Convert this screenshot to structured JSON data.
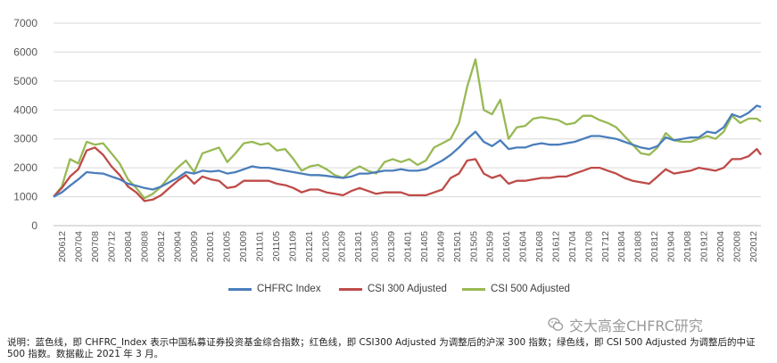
{
  "chart_data": {
    "type": "line",
    "title": "",
    "xlabel": "",
    "ylabel": "",
    "ylim": [
      0,
      7000
    ],
    "yticks": [
      0,
      1000,
      2000,
      3000,
      4000,
      5000,
      6000,
      7000
    ],
    "grid": "horizontal",
    "legend_position": "bottom",
    "xtick_labels": [
      "200612",
      "200704",
      "200708",
      "200712",
      "200804",
      "200808",
      "200812",
      "200904",
      "200909",
      "201001",
      "201005",
      "201009",
      "201101",
      "201105",
      "201109",
      "201201",
      "201205",
      "201209",
      "201301",
      "201305",
      "201309",
      "201401",
      "201405",
      "201409",
      "201501",
      "201505",
      "201509",
      "201601",
      "201604",
      "201608",
      "201612",
      "201704",
      "201708",
      "201712",
      "201804",
      "201808",
      "201812",
      "201904",
      "201908",
      "201912",
      "202004",
      "202008",
      "202012"
    ],
    "x_start": "2006-12",
    "x_end": "2021-03",
    "series": [
      {
        "name": "CHFRC Index",
        "color": "#4a7ebb",
        "points": [
          [
            "2006-12",
            1000
          ],
          [
            "2007-02",
            1150
          ],
          [
            "2007-04",
            1380
          ],
          [
            "2007-06",
            1600
          ],
          [
            "2007-08",
            1850
          ],
          [
            "2007-10",
            1820
          ],
          [
            "2007-12",
            1800
          ],
          [
            "2008-02",
            1700
          ],
          [
            "2008-04",
            1600
          ],
          [
            "2008-06",
            1450
          ],
          [
            "2008-08",
            1380
          ],
          [
            "2008-10",
            1300
          ],
          [
            "2008-12",
            1250
          ],
          [
            "2009-02",
            1350
          ],
          [
            "2009-04",
            1500
          ],
          [
            "2009-06",
            1650
          ],
          [
            "2009-08",
            1850
          ],
          [
            "2009-10",
            1800
          ],
          [
            "2009-12",
            1900
          ],
          [
            "2010-02",
            1870
          ],
          [
            "2010-04",
            1900
          ],
          [
            "2010-06",
            1800
          ],
          [
            "2010-08",
            1850
          ],
          [
            "2010-10",
            1950
          ],
          [
            "2010-12",
            2050
          ],
          [
            "2011-02",
            2000
          ],
          [
            "2011-04",
            2000
          ],
          [
            "2011-06",
            1950
          ],
          [
            "2011-08",
            1900
          ],
          [
            "2011-10",
            1850
          ],
          [
            "2011-12",
            1800
          ],
          [
            "2012-02",
            1750
          ],
          [
            "2012-04",
            1750
          ],
          [
            "2012-06",
            1720
          ],
          [
            "2012-08",
            1680
          ],
          [
            "2012-10",
            1650
          ],
          [
            "2012-12",
            1700
          ],
          [
            "2013-02",
            1800
          ],
          [
            "2013-04",
            1800
          ],
          [
            "2013-06",
            1850
          ],
          [
            "2013-08",
            1900
          ],
          [
            "2013-10",
            1900
          ],
          [
            "2013-12",
            1950
          ],
          [
            "2014-02",
            1900
          ],
          [
            "2014-04",
            1900
          ],
          [
            "2014-06",
            1950
          ],
          [
            "2014-08",
            2100
          ],
          [
            "2014-10",
            2250
          ],
          [
            "2014-12",
            2450
          ],
          [
            "2015-02",
            2700
          ],
          [
            "2015-04",
            3000
          ],
          [
            "2015-06",
            3250
          ],
          [
            "2015-08",
            2900
          ],
          [
            "2015-10",
            2750
          ],
          [
            "2015-12",
            2950
          ],
          [
            "2016-02",
            2650
          ],
          [
            "2016-04",
            2700
          ],
          [
            "2016-06",
            2700
          ],
          [
            "2016-08",
            2800
          ],
          [
            "2016-10",
            2850
          ],
          [
            "2016-12",
            2800
          ],
          [
            "2017-02",
            2800
          ],
          [
            "2017-04",
            2850
          ],
          [
            "2017-06",
            2900
          ],
          [
            "2017-08",
            3000
          ],
          [
            "2017-10",
            3100
          ],
          [
            "2017-12",
            3100
          ],
          [
            "2018-02",
            3050
          ],
          [
            "2018-04",
            3000
          ],
          [
            "2018-06",
            2900
          ],
          [
            "2018-08",
            2800
          ],
          [
            "2018-10",
            2700
          ],
          [
            "2018-12",
            2650
          ],
          [
            "2019-02",
            2750
          ],
          [
            "2019-04",
            3050
          ],
          [
            "2019-06",
            2950
          ],
          [
            "2019-08",
            3000
          ],
          [
            "2019-10",
            3050
          ],
          [
            "2019-12",
            3050
          ],
          [
            "2020-02",
            3250
          ],
          [
            "2020-04",
            3200
          ],
          [
            "2020-06",
            3400
          ],
          [
            "2020-08",
            3850
          ],
          [
            "2020-10",
            3750
          ],
          [
            "2020-12",
            3900
          ],
          [
            "2021-02",
            4150
          ],
          [
            "2021-03",
            4100
          ]
        ]
      },
      {
        "name": "CSI 300 Adjusted",
        "color": "#be4b48",
        "points": [
          [
            "2006-12",
            1000
          ],
          [
            "2007-02",
            1300
          ],
          [
            "2007-04",
            1700
          ],
          [
            "2007-06",
            1950
          ],
          [
            "2007-08",
            2600
          ],
          [
            "2007-10",
            2700
          ],
          [
            "2007-12",
            2450
          ],
          [
            "2008-02",
            2050
          ],
          [
            "2008-04",
            1750
          ],
          [
            "2008-06",
            1350
          ],
          [
            "2008-08",
            1150
          ],
          [
            "2008-10",
            850
          ],
          [
            "2008-12",
            900
          ],
          [
            "2009-02",
            1050
          ],
          [
            "2009-04",
            1300
          ],
          [
            "2009-06",
            1550
          ],
          [
            "2009-08",
            1750
          ],
          [
            "2009-10",
            1450
          ],
          [
            "2009-12",
            1700
          ],
          [
            "2010-02",
            1600
          ],
          [
            "2010-04",
            1550
          ],
          [
            "2010-06",
            1300
          ],
          [
            "2010-08",
            1350
          ],
          [
            "2010-10",
            1550
          ],
          [
            "2010-12",
            1550
          ],
          [
            "2011-02",
            1550
          ],
          [
            "2011-04",
            1550
          ],
          [
            "2011-06",
            1450
          ],
          [
            "2011-08",
            1400
          ],
          [
            "2011-10",
            1300
          ],
          [
            "2011-12",
            1150
          ],
          [
            "2012-02",
            1250
          ],
          [
            "2012-04",
            1250
          ],
          [
            "2012-06",
            1150
          ],
          [
            "2012-08",
            1100
          ],
          [
            "2012-10",
            1050
          ],
          [
            "2012-12",
            1200
          ],
          [
            "2013-02",
            1300
          ],
          [
            "2013-04",
            1200
          ],
          [
            "2013-06",
            1100
          ],
          [
            "2013-08",
            1150
          ],
          [
            "2013-10",
            1150
          ],
          [
            "2013-12",
            1150
          ],
          [
            "2014-02",
            1050
          ],
          [
            "2014-04",
            1050
          ],
          [
            "2014-06",
            1050
          ],
          [
            "2014-08",
            1150
          ],
          [
            "2014-10",
            1250
          ],
          [
            "2014-12",
            1650
          ],
          [
            "2015-02",
            1800
          ],
          [
            "2015-04",
            2250
          ],
          [
            "2015-06",
            2300
          ],
          [
            "2015-08",
            1800
          ],
          [
            "2015-10",
            1650
          ],
          [
            "2015-12",
            1750
          ],
          [
            "2016-02",
            1450
          ],
          [
            "2016-04",
            1550
          ],
          [
            "2016-06",
            1550
          ],
          [
            "2016-08",
            1600
          ],
          [
            "2016-10",
            1650
          ],
          [
            "2016-12",
            1650
          ],
          [
            "2017-02",
            1700
          ],
          [
            "2017-04",
            1700
          ],
          [
            "2017-06",
            1800
          ],
          [
            "2017-08",
            1900
          ],
          [
            "2017-10",
            2000
          ],
          [
            "2017-12",
            2000
          ],
          [
            "2018-02",
            1900
          ],
          [
            "2018-04",
            1800
          ],
          [
            "2018-06",
            1650
          ],
          [
            "2018-08",
            1550
          ],
          [
            "2018-10",
            1500
          ],
          [
            "2018-12",
            1450
          ],
          [
            "2019-02",
            1700
          ],
          [
            "2019-04",
            1950
          ],
          [
            "2019-06",
            1800
          ],
          [
            "2019-08",
            1850
          ],
          [
            "2019-10",
            1900
          ],
          [
            "2019-12",
            2000
          ],
          [
            "2020-02",
            1950
          ],
          [
            "2020-04",
            1900
          ],
          [
            "2020-06",
            2000
          ],
          [
            "2020-08",
            2300
          ],
          [
            "2020-10",
            2300
          ],
          [
            "2020-12",
            2400
          ],
          [
            "2021-02",
            2650
          ],
          [
            "2021-03",
            2450
          ]
        ]
      },
      {
        "name": "CSI 500 Adjusted",
        "color": "#98b954",
        "points": [
          [
            "2006-12",
            1000
          ],
          [
            "2007-02",
            1350
          ],
          [
            "2007-04",
            2300
          ],
          [
            "2007-06",
            2150
          ],
          [
            "2007-08",
            2900
          ],
          [
            "2007-10",
            2800
          ],
          [
            "2007-12",
            2850
          ],
          [
            "2008-02",
            2500
          ],
          [
            "2008-04",
            2150
          ],
          [
            "2008-06",
            1600
          ],
          [
            "2008-08",
            1300
          ],
          [
            "2008-10",
            950
          ],
          [
            "2008-12",
            1100
          ],
          [
            "2009-02",
            1350
          ],
          [
            "2009-04",
            1700
          ],
          [
            "2009-06",
            2000
          ],
          [
            "2009-08",
            2250
          ],
          [
            "2009-10",
            1850
          ],
          [
            "2009-12",
            2500
          ],
          [
            "2010-02",
            2600
          ],
          [
            "2010-04",
            2700
          ],
          [
            "2010-06",
            2200
          ],
          [
            "2010-08",
            2500
          ],
          [
            "2010-10",
            2850
          ],
          [
            "2010-12",
            2900
          ],
          [
            "2011-02",
            2800
          ],
          [
            "2011-04",
            2850
          ],
          [
            "2011-06",
            2600
          ],
          [
            "2011-08",
            2650
          ],
          [
            "2011-10",
            2300
          ],
          [
            "2011-12",
            1900
          ],
          [
            "2012-02",
            2050
          ],
          [
            "2012-04",
            2100
          ],
          [
            "2012-06",
            1950
          ],
          [
            "2012-08",
            1750
          ],
          [
            "2012-10",
            1650
          ],
          [
            "2012-12",
            1900
          ],
          [
            "2013-02",
            2050
          ],
          [
            "2013-04",
            1900
          ],
          [
            "2013-06",
            1800
          ],
          [
            "2013-08",
            2200
          ],
          [
            "2013-10",
            2300
          ],
          [
            "2013-12",
            2200
          ],
          [
            "2014-02",
            2300
          ],
          [
            "2014-04",
            2100
          ],
          [
            "2014-06",
            2250
          ],
          [
            "2014-08",
            2700
          ],
          [
            "2014-10",
            2850
          ],
          [
            "2014-12",
            3000
          ],
          [
            "2015-02",
            3550
          ],
          [
            "2015-04",
            4800
          ],
          [
            "2015-06",
            5750
          ],
          [
            "2015-08",
            4000
          ],
          [
            "2015-10",
            3850
          ],
          [
            "2015-12",
            4350
          ],
          [
            "2016-02",
            3000
          ],
          [
            "2016-04",
            3400
          ],
          [
            "2016-06",
            3450
          ],
          [
            "2016-08",
            3700
          ],
          [
            "2016-10",
            3750
          ],
          [
            "2016-12",
            3700
          ],
          [
            "2017-02",
            3650
          ],
          [
            "2017-04",
            3500
          ],
          [
            "2017-06",
            3550
          ],
          [
            "2017-08",
            3800
          ],
          [
            "2017-10",
            3800
          ],
          [
            "2017-12",
            3650
          ],
          [
            "2018-02",
            3550
          ],
          [
            "2018-04",
            3400
          ],
          [
            "2018-06",
            3100
          ],
          [
            "2018-08",
            2800
          ],
          [
            "2018-10",
            2500
          ],
          [
            "2018-12",
            2450
          ],
          [
            "2019-02",
            2700
          ],
          [
            "2019-04",
            3200
          ],
          [
            "2019-06",
            2950
          ],
          [
            "2019-08",
            2900
          ],
          [
            "2019-10",
            2900
          ],
          [
            "2019-12",
            3000
          ],
          [
            "2020-02",
            3100
          ],
          [
            "2020-04",
            3000
          ],
          [
            "2020-06",
            3250
          ],
          [
            "2020-08",
            3800
          ],
          [
            "2020-10",
            3550
          ],
          [
            "2020-12",
            3700
          ],
          [
            "2021-02",
            3700
          ],
          [
            "2021-03",
            3600
          ]
        ]
      }
    ]
  },
  "caption": "说明：蓝色线，即 CHFRC_Index 表示中国私募证券投资基金综合指数；红色线，即 CSI300 Adjusted 为调整后的沪深 300 指数；绿色线，即 CSI 500 Adjusted 为调整后的中证 500 指数。数据截止 2021 年 3 月。",
  "watermark": {
    "text": "交大高金CHFRC研究",
    "icon": "wechat-icon"
  }
}
